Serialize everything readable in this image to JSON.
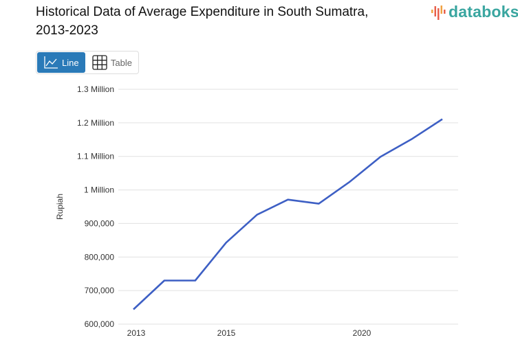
{
  "header": {
    "title": "Historical Data of Average Expenditure in South Sumatra, 2013-2023",
    "logo": "databoks"
  },
  "view_toggle": {
    "line_label": "Line",
    "table_label": "Table",
    "active": "Line"
  },
  "colors": {
    "line": "#3d5fc4",
    "active_button": "#2a7ab8",
    "logo": "#3aa6a0",
    "grid": "#e0e0e0"
  },
  "chart_data": {
    "type": "line",
    "title": "Historical Data of Average Expenditure in South Sumatra, 2013-2023",
    "xlabel": "",
    "ylabel": "Rupiah",
    "x": [
      2013,
      2014,
      2015,
      2016,
      2017,
      2018,
      2019,
      2020,
      2021,
      2022,
      2023
    ],
    "series": [
      {
        "values": [
          644000,
          730000,
          730000,
          843000,
          926000,
          971000,
          959000,
          1024000,
          1099000,
          1151000,
          1211000
        ]
      }
    ],
    "ylim": [
      600000,
      1300000
    ],
    "yticks": [
      600000,
      700000,
      800000,
      900000,
      1000000,
      1100000,
      1200000,
      1300000
    ],
    "ytick_labels": [
      "600,000",
      "700,000",
      "800,000",
      "900,000",
      "1 Million",
      "1.1 Million",
      "1.2 Million",
      "1.3 Million"
    ],
    "xtick_labels": [
      "2013",
      "2015",
      "2020"
    ],
    "grid": true,
    "legend": "none"
  }
}
